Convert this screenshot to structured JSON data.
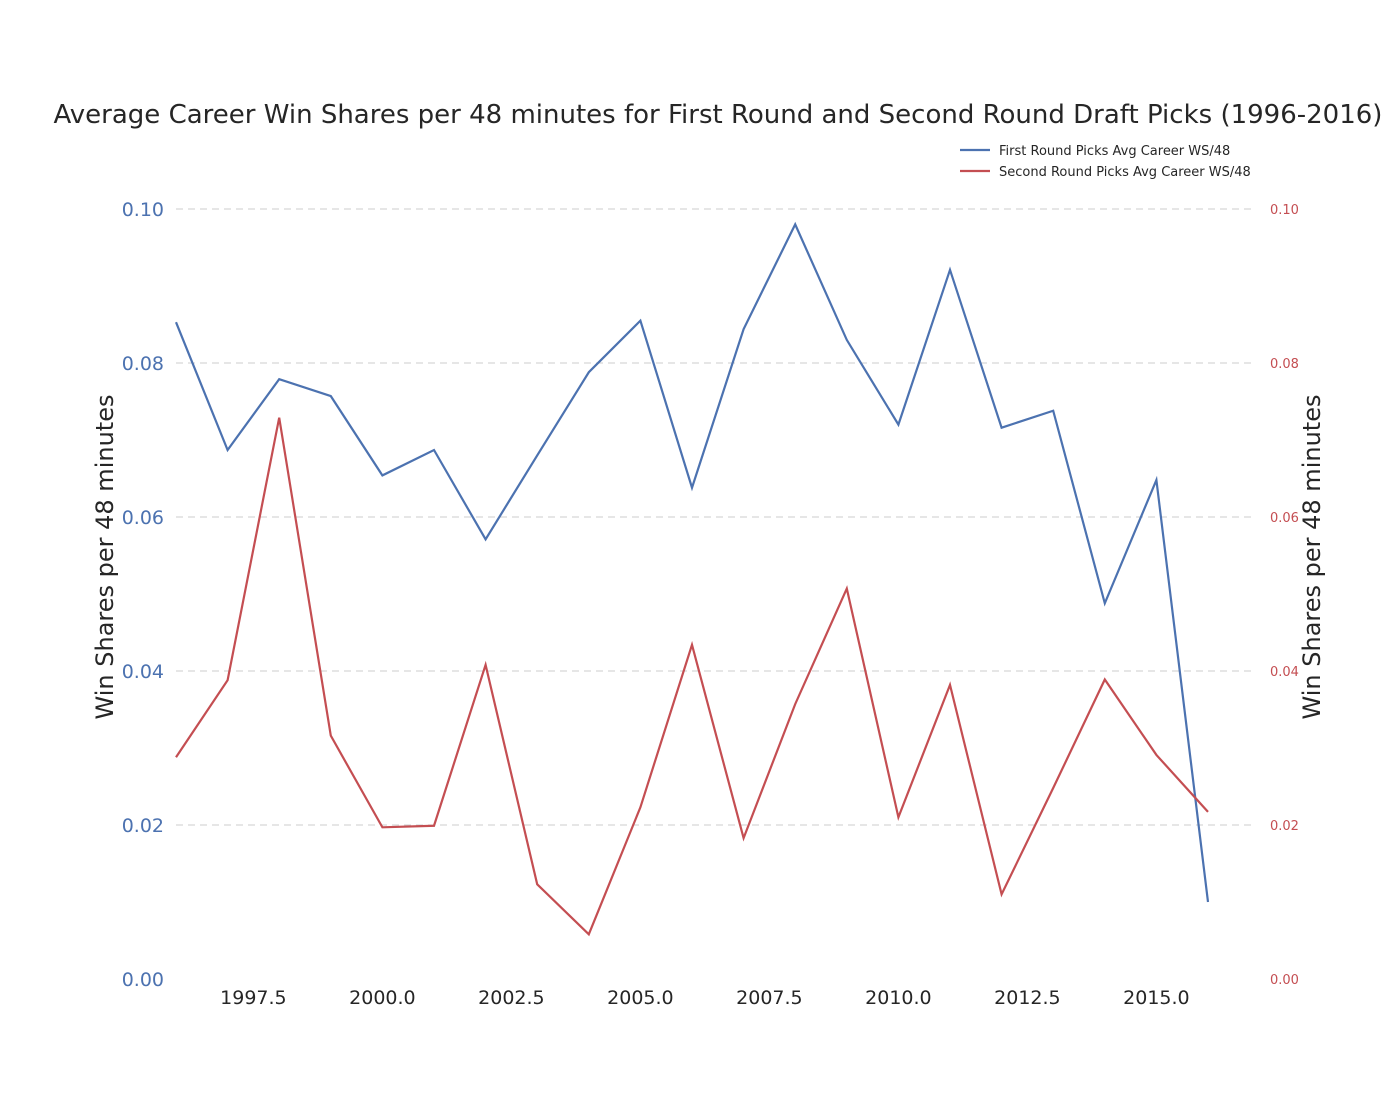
{
  "chart_data": {
    "type": "line",
    "title": "Average Career Win Shares per 48 minutes for First Round and Second Round Draft Picks (1996-2016)",
    "ylabel_left": "Win Shares per 48 minutes",
    "ylabel_right": "Win Shares per 48 minutes",
    "x": [
      1996,
      1997,
      1998,
      1999,
      2000,
      2001,
      2002,
      2003,
      2004,
      2005,
      2006,
      2007,
      2008,
      2009,
      2010,
      2011,
      2012,
      2013,
      2014,
      2015,
      2016
    ],
    "xlim": [
      1996,
      2016
    ],
    "ylim_left": [
      0,
      0.1
    ],
    "ylim_right": [
      0,
      0.1
    ],
    "xticks": [
      {
        "value": 1997.5,
        "label": "1997.5"
      },
      {
        "value": 2000.0,
        "label": "2000.0"
      },
      {
        "value": 2002.5,
        "label": "2002.5"
      },
      {
        "value": 2005.0,
        "label": "2005.0"
      },
      {
        "value": 2007.5,
        "label": "2007.5"
      },
      {
        "value": 2010.0,
        "label": "2010.0"
      },
      {
        "value": 2012.5,
        "label": "2012.5"
      },
      {
        "value": 2015.0,
        "label": "2015.0"
      }
    ],
    "yticks": [
      {
        "value": 0.0,
        "label": "0.00"
      },
      {
        "value": 0.02,
        "label": "0.02"
      },
      {
        "value": 0.04,
        "label": "0.04"
      },
      {
        "value": 0.06,
        "label": "0.06"
      },
      {
        "value": 0.08,
        "label": "0.08"
      },
      {
        "value": 0.1,
        "label": "0.10"
      }
    ],
    "grid": true,
    "legend_position": "top-right",
    "series": [
      {
        "name": "First Round Picks Avg Career WS/48",
        "axis": "left",
        "color": "#4c72b0",
        "values": [
          0.0853,
          0.0687,
          0.0779,
          0.0757,
          0.0654,
          0.0687,
          0.0571,
          0.068,
          0.0788,
          0.0855,
          0.0638,
          0.0844,
          0.098,
          0.083,
          0.072,
          0.0921,
          0.0716,
          0.0738,
          0.0488,
          0.0648,
          0.01
        ]
      },
      {
        "name": "Second Round Picks Avg Career WS/48",
        "axis": "right",
        "color": "#c44e52",
        "values": [
          0.0288,
          0.0388,
          0.0729,
          0.0316,
          0.0197,
          0.0199,
          0.0408,
          0.0123,
          0.0058,
          0.0223,
          0.0434,
          0.0183,
          0.0357,
          0.0507,
          0.021,
          0.0382,
          0.011,
          0.0248,
          0.0389,
          0.0291,
          0.0217
        ]
      }
    ],
    "left_tick_color": "#4c72b0",
    "right_tick_color": "#c44e52"
  }
}
